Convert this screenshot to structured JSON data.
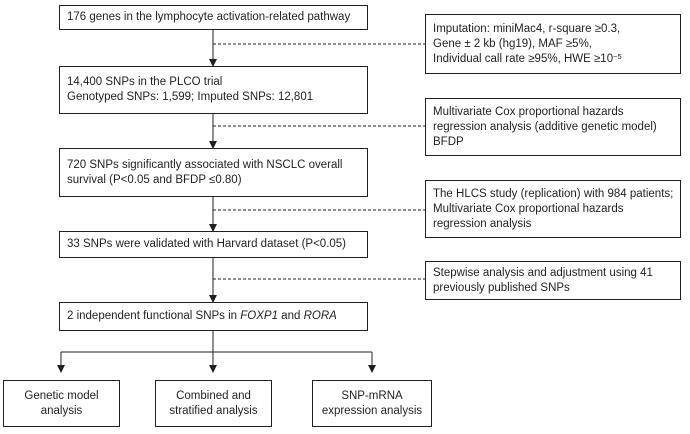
{
  "main_steps": [
    {
      "lines": [
        "176 genes in the lymphocyte activation-related pathway"
      ]
    },
    {
      "lines": [
        "14,400 SNPs in the PLCO trial",
        "Genotyped SNPs: 1,599; Imputed SNPs: 12,801"
      ]
    },
    {
      "lines": [
        "720 SNPs significantly associated with NSCLC overall",
        "survival (P<0.05 and BFDP ≤0.80)"
      ]
    },
    {
      "lines": [
        "33 SNPs were validated with Harvard dataset (P<0.05)"
      ]
    },
    {
      "prefix": "2 independent functional SNPs in ",
      "gene1": "FOXP1",
      "middle": " and ",
      "gene2": "RORA"
    }
  ],
  "side_notes": [
    {
      "lines": [
        "Imputation: miniMac4, r-square ≥0.3,",
        "Gene ± 2 kb (hg19), MAF ≥5%,"
      ],
      "last_line_prefix": "Individual call rate ≥95%, HWE ≥10",
      "last_line_sup": "−5"
    },
    {
      "lines": [
        "Multivariate Cox proportional hazards",
        "regression analysis (additive genetic model)",
        "BFDP"
      ]
    },
    {
      "lines": [
        "The HLCS study (replication) with 984 patients;",
        "Multivariate Cox proportional hazards",
        "regression analysis"
      ]
    },
    {
      "lines": [
        "Stepwise analysis and adjustment using 41",
        "previously published SNPs"
      ]
    }
  ],
  "final_analyses": [
    {
      "lines": [
        "Genetic model",
        "analysis"
      ]
    },
    {
      "lines": [
        "Combined and",
        "stratified analysis"
      ]
    },
    {
      "lines": [
        "SNP-mRNA",
        "expression analysis"
      ]
    }
  ],
  "colors": {
    "stroke": "#231f20",
    "background": "#ffffff"
  }
}
